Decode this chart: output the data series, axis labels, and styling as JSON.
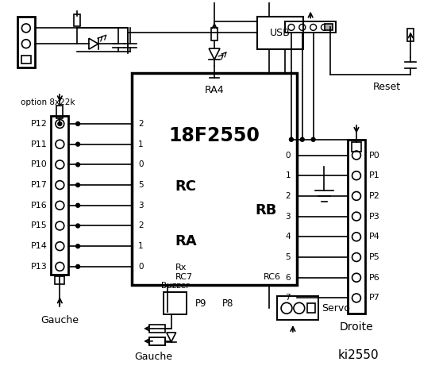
{
  "bg_color": "#ffffff",
  "line_color": "#000000",
  "chip_label": "18F2550",
  "chip_sublabel": "RA4",
  "left_connector_labels": [
    "P12",
    "P11",
    "P10",
    "P17",
    "P16",
    "P15",
    "P14",
    "P13"
  ],
  "right_connector_labels": [
    "P0",
    "P1",
    "P2",
    "P3",
    "P4",
    "P5",
    "P6",
    "P7"
  ],
  "rc_pins": [
    "2",
    "1",
    "0",
    "5",
    "3",
    "2",
    "1",
    "0"
  ],
  "rb_pins": [
    "0",
    "1",
    "2",
    "3",
    "4",
    "5",
    "6",
    "7"
  ],
  "left_port_label": "RC",
  "left_port_label2": "RA",
  "right_port_label": "RB",
  "rx_label": "Rx",
  "rc7_label": "RC7",
  "rc6_label": "RC6",
  "reset_label": "Reset",
  "droite_label": "Droite",
  "option_label": "option 8x22k",
  "usb_label": "USB",
  "ki_label": "ki2550",
  "buzzer_label": "Buzzer",
  "gauche_label": "Gauche",
  "servo_label": "Servo",
  "p9_label": "P9",
  "p8_label": "P8"
}
